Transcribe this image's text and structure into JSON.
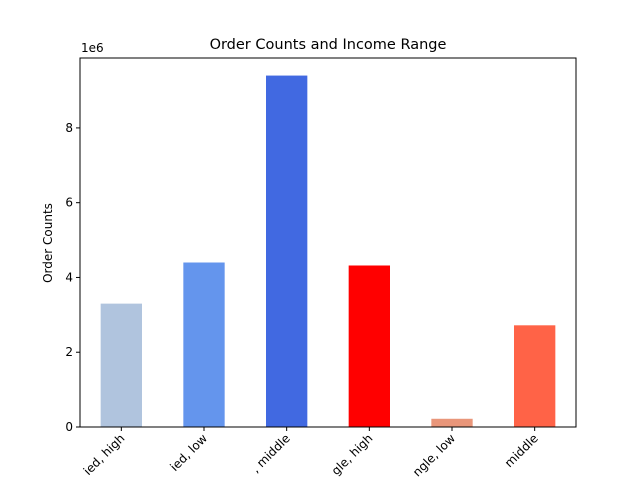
{
  "chart_data": {
    "type": "bar",
    "title": "Order Counts and Income Range",
    "ylabel": "Order Counts",
    "xlabel": "",
    "y_offset_label": "1e6",
    "categories": [
      "married, high",
      "married, low",
      "married, middle",
      "single, high",
      "single, low",
      "single, middle"
    ],
    "visible_tick_text": [
      "ied, high",
      "ied, low",
      ", middle",
      "gle, high",
      "ngle, low",
      "middle"
    ],
    "values": [
      3300000,
      4400000,
      9400000,
      4320000,
      220000,
      2720000
    ],
    "colors": [
      "#b0c4de",
      "#6495ed",
      "#4169e1",
      "#ff0000",
      "#e9967a",
      "#ff6347"
    ],
    "ylim": [
      0,
      9870000
    ],
    "yticks": [
      0,
      2000000,
      4000000,
      6000000,
      8000000
    ],
    "ytick_labels": [
      "0",
      "2",
      "4",
      "6",
      "8"
    ],
    "grid": false,
    "legend": "none"
  }
}
